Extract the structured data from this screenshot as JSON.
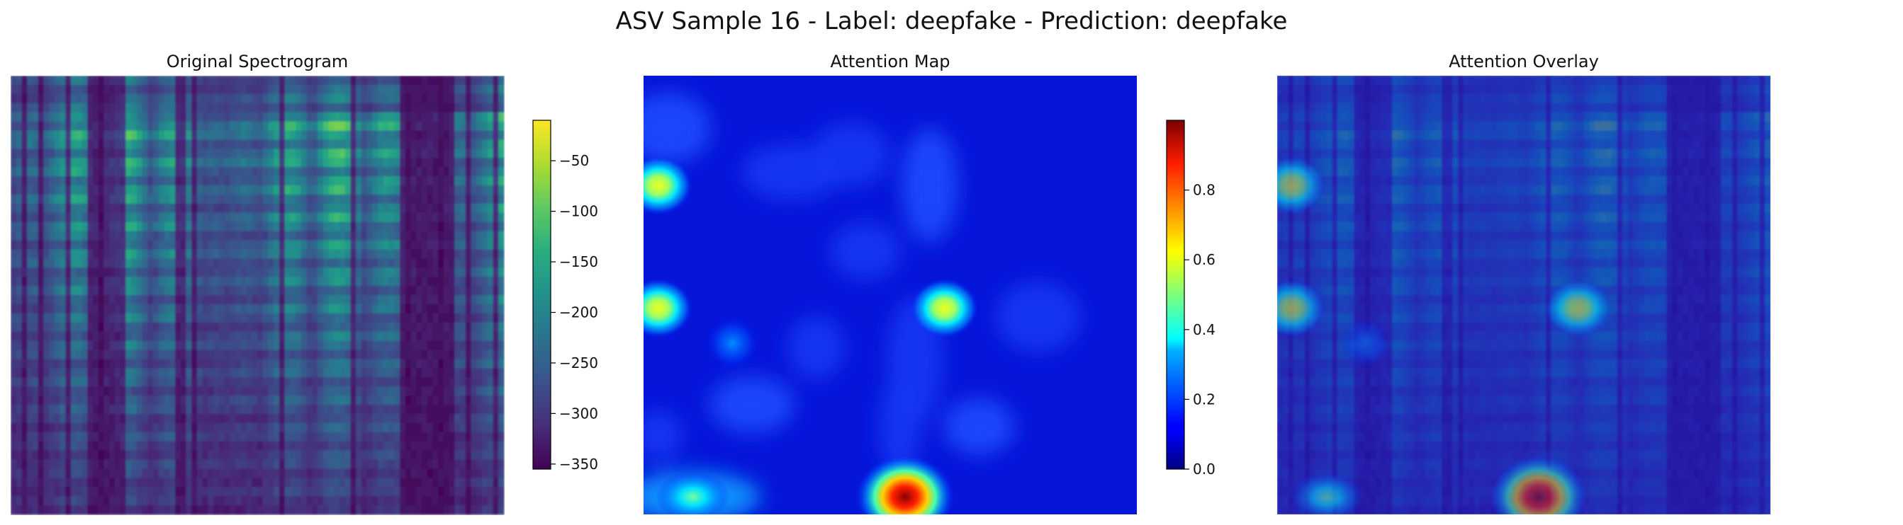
{
  "figure": {
    "suptitle": "ASV Sample 16 - Label: deepfake - Prediction: deepfake"
  },
  "chart_data": [
    {
      "type": "heatmap",
      "title": "Original Spectrogram",
      "colormap": "viridis",
      "axes_visible": false,
      "colorbar": {
        "range": [
          -355,
          -10
        ],
        "ticks": [
          -50,
          -100,
          -150,
          -200,
          -250,
          -300,
          -350
        ]
      },
      "time_columns": 90,
      "band_rows": 48
    },
    {
      "type": "heatmap",
      "title": "Attention Map",
      "colormap": "jet",
      "axes_visible": false,
      "colorbar": {
        "range": [
          0.0,
          1.0
        ],
        "ticks": [
          0.0,
          0.2,
          0.4,
          0.6,
          0.8
        ]
      },
      "hotspots": [
        {
          "x": 0.53,
          "y": 0.96,
          "value": 1.0
        },
        {
          "x": 0.61,
          "y": 0.53,
          "value": 0.62
        },
        {
          "x": 0.03,
          "y": 0.53,
          "value": 0.55
        },
        {
          "x": 0.03,
          "y": 0.25,
          "value": 0.55
        },
        {
          "x": 0.1,
          "y": 0.96,
          "value": 0.42
        },
        {
          "x": 0.18,
          "y": 0.61,
          "value": 0.3
        }
      ]
    },
    {
      "type": "heatmap",
      "title": "Attention Overlay",
      "composition": "spectrogram with attention map blended on top",
      "axes_visible": false
    }
  ]
}
